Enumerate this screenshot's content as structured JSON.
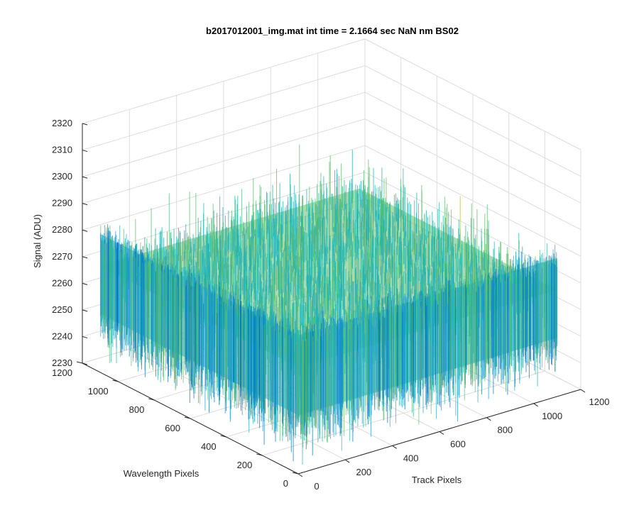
{
  "figure": {
    "background": "#ffffff"
  },
  "chart_data": {
    "type": "surface",
    "title": "b2017012001_img.mat int time = 2.1664 sec  NaN nm BS02",
    "xlabel": "Track Pixels",
    "ylabel": "Wavelength Pixels",
    "zlabel": "Signal (ADU)",
    "xlim": [
      0,
      1200
    ],
    "ylim": [
      0,
      1200
    ],
    "zlim": [
      2230,
      2320
    ],
    "x_ticks": [
      "0",
      "200",
      "400",
      "600",
      "800",
      "1000",
      "1200"
    ],
    "y_ticks": [
      "0",
      "200",
      "400",
      "600",
      "800",
      "1000",
      "1200"
    ],
    "z_ticks": [
      "2230",
      "2240",
      "2250",
      "2260",
      "2270",
      "2280",
      "2290",
      "2300",
      "2310",
      "2320"
    ],
    "grid": true,
    "colormap": "parula",
    "colormap_colors": [
      "#0072bd",
      "#1e9bd0",
      "#21b3b0",
      "#5cc06d",
      "#a8c548",
      "#e6c33b"
    ],
    "surface": {
      "x_range": [
        0,
        1100
      ],
      "y_range": [
        0,
        1100
      ],
      "mean_signal": 2270,
      "noise_span": [
        2235,
        2312
      ],
      "edge_top_signal": 2282,
      "edge_bottom_signal": 2252
    }
  }
}
